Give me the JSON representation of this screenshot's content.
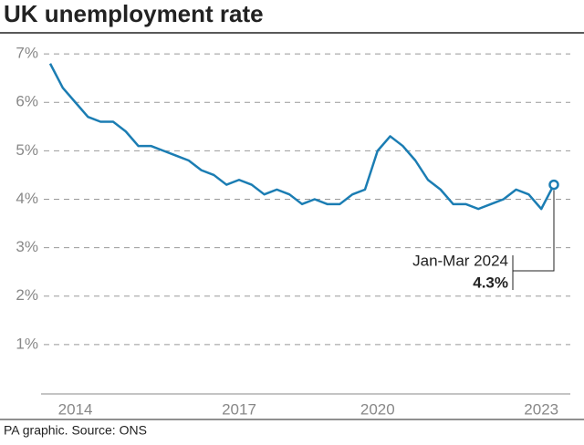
{
  "chart_data": {
    "type": "line",
    "title": "UK unemployment rate",
    "categories": [
      null,
      null,
      "2014",
      null,
      null,
      null,
      null,
      null,
      null,
      null,
      null,
      null,
      null,
      null,
      null,
      "2017",
      null,
      null,
      null,
      null,
      null,
      null,
      null,
      null,
      null,
      null,
      "2020",
      null,
      null,
      null,
      null,
      null,
      null,
      null,
      null,
      null,
      null,
      null,
      null,
      "2023",
      null
    ],
    "series": [
      {
        "color": "#1b7db3",
        "values": [
          6.8,
          6.3,
          6.0,
          5.7,
          5.6,
          5.6,
          5.4,
          5.1,
          5.1,
          5.0,
          4.9,
          4.8,
          4.6,
          4.5,
          4.3,
          4.4,
          4.3,
          4.1,
          4.2,
          4.1,
          3.9,
          4.0,
          3.9,
          3.9,
          4.1,
          4.2,
          5.0,
          5.3,
          5.1,
          4.8,
          4.4,
          4.2,
          3.9,
          3.9,
          3.8,
          3.9,
          4.0,
          4.2,
          4.1,
          3.8,
          4.3
        ]
      }
    ],
    "ylim": [
      0,
      7.2
    ],
    "yticks": [
      {
        "value": 1,
        "label": "1%"
      },
      {
        "value": 2,
        "label": "2%"
      },
      {
        "value": 3,
        "label": "3%"
      },
      {
        "value": 4,
        "label": "4%"
      },
      {
        "value": 5,
        "label": "5%"
      },
      {
        "value": 6,
        "label": "6%"
      },
      {
        "value": 7,
        "label": "7%"
      }
    ],
    "grid": true,
    "annotation": {
      "text": "Jan-Mar 2024",
      "value_label": "4.3%"
    },
    "source": "PA graphic. Source: ONS"
  }
}
